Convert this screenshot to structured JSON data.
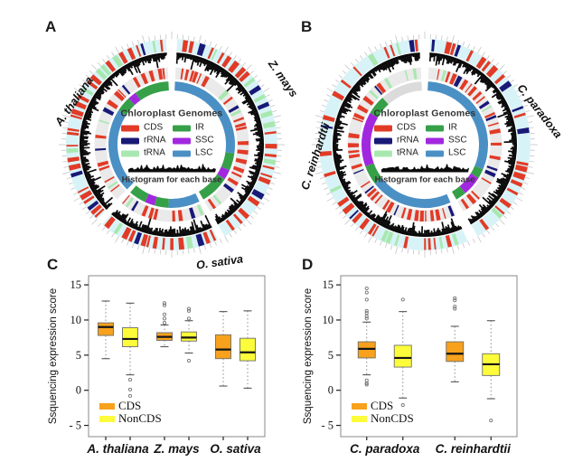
{
  "figure": {
    "panels": {
      "a_label": "A",
      "b_label": "B",
      "c_label": "C",
      "d_label": "D"
    }
  },
  "colors": {
    "cds": "#E13B27",
    "rrna": "#191977",
    "trna": "#A8E8B0",
    "ir": "#36A048",
    "ssc": "#A228E0",
    "lsc": "#4B90C5",
    "unassigned": "#DBDBDB",
    "outer_band": "#D8F3F7",
    "inner_band": "#EAEAEA",
    "histogram": "#0B0B0B",
    "box_cds": "#F7A11C",
    "box_noncds": "#FCFC3A"
  },
  "circos_legend": {
    "title": "Chloroplast Genomes",
    "items": [
      {
        "label": "CDS",
        "color_key": "cds"
      },
      {
        "label": "IR",
        "color_key": "ir"
      },
      {
        "label": "rRNA",
        "color_key": "rrna"
      },
      {
        "label": "SSC",
        "color_key": "ssc"
      },
      {
        "label": "tRNA",
        "color_key": "trna"
      },
      {
        "label": "LSC",
        "color_key": "lsc"
      }
    ],
    "histogram_caption": "Histogram for each base"
  },
  "circos_panels": [
    {
      "letter": "A",
      "species_labels": [
        {
          "text": "A. thaliana"
        },
        {
          "text": "Z. mays"
        },
        {
          "text": "O. sativa"
        }
      ],
      "segments": [
        {
          "arcs": [
            [
              "lsc",
              3,
              98
            ],
            [
              "ir",
              98,
              114
            ],
            [
              "ssc",
              114,
              123
            ],
            [
              "ir",
              123,
              150
            ]
          ]
        },
        {
          "arcs": [
            [
              "lsc",
              154,
              183
            ],
            [
              "ir",
              183,
              196
            ],
            [
              "ssc",
              196,
              205
            ],
            [
              "ir",
              205,
              221
            ]
          ]
        },
        {
          "arcs": [
            [
              "lsc",
              225,
              303
            ],
            [
              "ir",
              303,
              317
            ],
            [
              "ssc",
              317,
              325
            ],
            [
              "ir",
              325,
              357
            ]
          ]
        }
      ],
      "seed": 7
    },
    {
      "letter": "B",
      "species_labels": [
        {
          "text": "C. paradoxa"
        },
        {
          "text": "C. reinhardtii"
        }
      ],
      "segments": [
        {
          "arcs": [
            [
              "lsc",
              3,
              113
            ],
            [
              "ir",
              113,
              122
            ],
            [
              "ssc",
              122,
              140
            ],
            [
              "ir",
              140,
              150
            ]
          ]
        },
        {
          "arcs": [
            [
              "lsc",
              156,
              232
            ],
            [
              "ir",
              232,
              250
            ],
            [
              "ssc",
              250,
              300
            ],
            [
              "ir",
              300,
              318
            ],
            [
              "unassigned",
              318,
              357
            ]
          ]
        }
      ],
      "seed": 23
    }
  ],
  "chart_data": [
    {
      "id": "C",
      "type": "boxplot",
      "ylabel": "Ssquencing expression score",
      "ylim": [
        -6.6,
        16.3
      ],
      "yticks": [
        15,
        10,
        5,
        0,
        -5
      ],
      "categories": [
        "A. thaliana",
        "Z. mays",
        "O. sativa"
      ],
      "legend": [
        "CDS",
        "NonCDS"
      ],
      "series": [
        {
          "name": "CDS",
          "color_key": "box_cds",
          "boxes": [
            {
              "category": "A. thaliana",
              "q1": 7.8,
              "median": 9.0,
              "q3": 9.6,
              "whisker_low": 4.5,
              "whisker_high": 12.7,
              "outliers": []
            },
            {
              "category": "Z. mays",
              "q1": 7.1,
              "median": 7.6,
              "q3": 8.2,
              "whisker_low": 6.2,
              "whisker_high": 9.3,
              "outliers": [
                9.6,
                10.2,
                10.8,
                12.1,
                12.4
              ]
            },
            {
              "category": "O. sativa",
              "q1": 4.5,
              "median": 5.8,
              "q3": 7.9,
              "whisker_low": 0.6,
              "whisker_high": 11.2,
              "outliers": []
            }
          ]
        },
        {
          "name": "NonCDS",
          "color_key": "box_noncds",
          "boxes": [
            {
              "category": "A. thaliana",
              "q1": 6.2,
              "median": 7.3,
              "q3": 8.9,
              "whisker_low": 2.2,
              "whisker_high": 12.4,
              "outliers": [
                1.5,
                0.1,
                -0.8
              ]
            },
            {
              "category": "Z. mays",
              "q1": 7.0,
              "median": 7.5,
              "q3": 8.3,
              "whisker_low": 5.3,
              "whisker_high": 9.9,
              "outliers": [
                4.2,
                10.2,
                11.3,
                11.6
              ]
            },
            {
              "category": "O. sativa",
              "q1": 4.2,
              "median": 5.4,
              "q3": 7.4,
              "whisker_low": 0.3,
              "whisker_high": 11.3,
              "outliers": []
            }
          ]
        }
      ]
    },
    {
      "id": "D",
      "type": "boxplot",
      "ylabel": "Ssquencing expression score",
      "ylim": [
        -6.6,
        16.3
      ],
      "yticks": [
        15,
        10,
        5,
        0,
        -5
      ],
      "categories": [
        "C. paradoxa",
        "C. reinhardtii"
      ],
      "legend": [
        "CDS",
        "NonCDS"
      ],
      "series": [
        {
          "name": "CDS",
          "color_key": "box_cds",
          "boxes": [
            {
              "category": "C. paradoxa",
              "q1": 4.6,
              "median": 5.9,
              "q3": 6.9,
              "whisker_low": 2.2,
              "whisker_high": 9.7,
              "outliers": [
                0.8,
                1.0,
                1.4,
                10.2,
                10.5,
                11.0,
                11.3,
                12.9,
                13.9,
                14.5
              ]
            },
            {
              "category": "C. reinhardtii",
              "q1": 4.1,
              "median": 5.2,
              "q3": 6.9,
              "whisker_low": 1.2,
              "whisker_high": 9.1,
              "outliers": [
                11.6,
                11.9,
                12.8,
                13.1
              ]
            }
          ]
        },
        {
          "name": "NonCDS",
          "color_key": "box_noncds",
          "boxes": [
            {
              "category": "C. paradoxa",
              "q1": 3.3,
              "median": 4.6,
              "q3": 6.4,
              "whisker_low": -1.1,
              "whisker_high": 11.2,
              "outliers": [
                12.9,
                -2.1
              ]
            },
            {
              "category": "C. reinhardtii",
              "q1": 2.1,
              "median": 3.7,
              "q3": 5.2,
              "whisker_low": -1.2,
              "whisker_high": 9.9,
              "outliers": [
                -4.3
              ]
            }
          ]
        }
      ]
    }
  ]
}
